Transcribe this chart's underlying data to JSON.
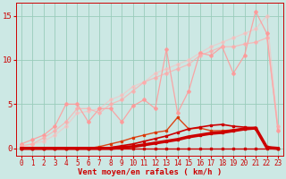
{
  "bg_color": "#cce8e4",
  "grid_color": "#99ccbb",
  "xlabel": "Vent moyen/en rafales ( km/h )",
  "xlabel_color": "#cc0000",
  "xlabel_fontsize": 6.5,
  "tick_color": "#cc0000",
  "tick_fontsize": 5.5,
  "xlim": [
    -0.5,
    23.5
  ],
  "ylim": [
    -0.8,
    16.5
  ],
  "yticks": [
    0,
    5,
    10,
    15
  ],
  "xticks": [
    0,
    1,
    2,
    3,
    4,
    5,
    6,
    7,
    8,
    9,
    10,
    11,
    12,
    13,
    14,
    15,
    16,
    17,
    18,
    19,
    20,
    21,
    22,
    23
  ],
  "lines": [
    {
      "x": [
        0,
        1,
        2,
        3,
        4,
        5,
        6,
        7,
        8,
        9,
        10,
        11,
        12,
        13,
        14,
        15,
        16,
        17,
        18,
        19,
        20,
        21,
        22,
        23
      ],
      "y": [
        0,
        0,
        0,
        0,
        0,
        0,
        0,
        0,
        0,
        0,
        0,
        0,
        0,
        0,
        0,
        0,
        0,
        0,
        0,
        0,
        0,
        0,
        0,
        0
      ],
      "color": "#cc0000",
      "lw": 1.0,
      "marker": "s",
      "ms": 2.0,
      "alpha": 1.0,
      "zorder": 5
    },
    {
      "x": [
        0,
        1,
        2,
        3,
        4,
        5,
        6,
        7,
        8,
        9,
        10,
        11,
        12,
        13,
        14,
        15,
        16,
        17,
        18,
        19,
        20,
        21,
        22,
        23
      ],
      "y": [
        0,
        0,
        0,
        0,
        0,
        0,
        0,
        0,
        0,
        0.1,
        0.2,
        0.4,
        0.6,
        0.8,
        1.0,
        1.3,
        1.5,
        1.7,
        1.8,
        2.0,
        2.2,
        2.3,
        0.1,
        0.0
      ],
      "color": "#cc0000",
      "lw": 2.5,
      "marker": "s",
      "ms": 2.0,
      "alpha": 1.0,
      "zorder": 5
    },
    {
      "x": [
        0,
        1,
        2,
        3,
        4,
        5,
        6,
        7,
        8,
        9,
        10,
        11,
        12,
        13,
        14,
        15,
        16,
        17,
        18,
        19,
        20,
        21,
        22,
        23
      ],
      "y": [
        0,
        0,
        0,
        0,
        0,
        0,
        0,
        0,
        0.1,
        0.3,
        0.5,
        0.8,
        1.1,
        1.4,
        1.8,
        2.2,
        2.4,
        2.6,
        2.7,
        2.5,
        2.4,
        2.3,
        0.15,
        0.0
      ],
      "color": "#cc0000",
      "lw": 1.2,
      "marker": "s",
      "ms": 2.0,
      "alpha": 1.0,
      "zorder": 5
    },
    {
      "x": [
        0,
        1,
        2,
        3,
        4,
        5,
        6,
        7,
        8,
        9,
        10,
        11,
        12,
        13,
        14,
        15,
        16,
        17,
        18,
        19,
        20,
        21,
        22,
        23
      ],
      "y": [
        0,
        0,
        0,
        0,
        0,
        0,
        0,
        0.2,
        0.5,
        0.8,
        1.2,
        1.5,
        1.8,
        2.0,
        3.5,
        2.2,
        2.3,
        2.0,
        2.0,
        2.1,
        2.2,
        2.2,
        0.2,
        0.0
      ],
      "color": "#dd3300",
      "lw": 1.0,
      "marker": "s",
      "ms": 2.0,
      "alpha": 0.9,
      "zorder": 4
    },
    {
      "x": [
        0,
        1,
        2,
        3,
        4,
        5,
        6,
        7,
        8,
        9,
        10,
        11,
        12,
        13,
        14,
        15,
        16,
        17,
        18,
        19,
        20,
        21,
        22,
        23
      ],
      "y": [
        0.5,
        1.0,
        1.5,
        2.5,
        5.0,
        5.0,
        3.0,
        4.5,
        4.5,
        3.0,
        4.8,
        5.5,
        4.5,
        11.2,
        4.0,
        6.5,
        10.8,
        10.5,
        11.5,
        8.5,
        10.5,
        15.5,
        13.0,
        2.0
      ],
      "color": "#ff9999",
      "lw": 0.9,
      "marker": "D",
      "ms": 2.0,
      "alpha": 0.85,
      "zorder": 3
    },
    {
      "x": [
        0,
        1,
        2,
        3,
        4,
        5,
        6,
        7,
        8,
        9,
        10,
        11,
        12,
        13,
        14,
        15,
        16,
        17,
        18,
        19,
        20,
        21,
        22,
        23
      ],
      "y": [
        0.3,
        0.5,
        1.2,
        2.0,
        3.0,
        4.5,
        4.5,
        4.0,
        5.0,
        5.5,
        6.5,
        7.5,
        8.0,
        8.5,
        9.0,
        9.5,
        10.5,
        11.0,
        11.5,
        11.5,
        11.8,
        12.0,
        12.5,
        2.5
      ],
      "color": "#ffaaaa",
      "lw": 0.9,
      "marker": "D",
      "ms": 2.0,
      "alpha": 0.7,
      "zorder": 3
    },
    {
      "x": [
        0,
        1,
        2,
        3,
        4,
        5,
        6,
        7,
        8,
        9,
        10,
        11,
        12,
        13,
        14,
        15,
        16,
        17,
        18,
        19,
        20,
        21,
        22,
        23
      ],
      "y": [
        0.2,
        0.5,
        0.8,
        1.5,
        2.5,
        4.0,
        4.2,
        4.5,
        5.5,
        6.0,
        7.0,
        7.5,
        8.5,
        9.0,
        9.5,
        10.0,
        10.8,
        11.5,
        12.0,
        12.5,
        13.0,
        13.5,
        15.0,
        2.2
      ],
      "color": "#ffbbbb",
      "lw": 0.9,
      "marker": "D",
      "ms": 2.0,
      "alpha": 0.55,
      "zorder": 2
    }
  ]
}
